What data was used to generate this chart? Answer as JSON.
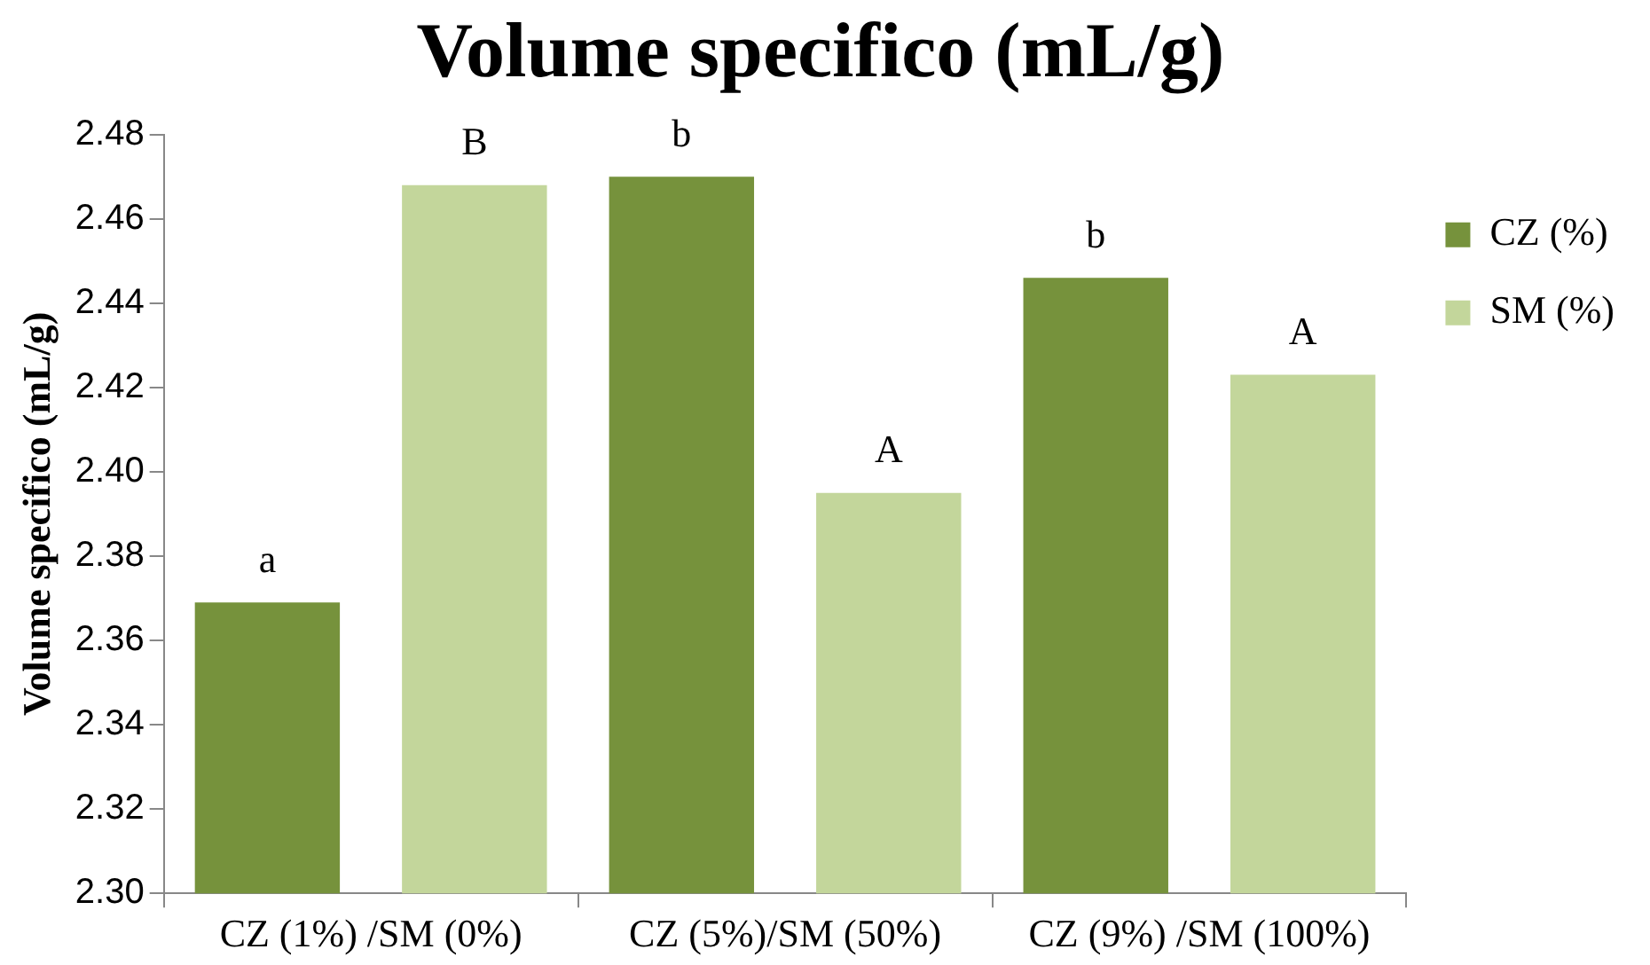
{
  "chart_data": {
    "type": "bar",
    "title": "Volume specifico (mL/g)",
    "ylabel": "Volume specifico (mL/g)",
    "categories": [
      "CZ (1%) /SM (0%)",
      "CZ (5%)/SM (50%)",
      "CZ (9%) /SM (100%)"
    ],
    "series": [
      {
        "name": "CZ (%)",
        "color": "#76923c",
        "values": [
          2.369,
          2.47,
          2.446
        ],
        "value_labels": [
          "a",
          "b",
          "b"
        ]
      },
      {
        "name": "SM (%)",
        "color": "#c3d69b",
        "values": [
          2.468,
          2.395,
          2.423
        ],
        "value_labels": [
          "B",
          "A",
          "A"
        ]
      }
    ],
    "ylim": [
      2.3,
      2.48
    ],
    "yticks": [
      {
        "value": 2.3,
        "label": "2.30"
      },
      {
        "value": 2.32,
        "label": "2.32"
      },
      {
        "value": 2.34,
        "label": "2.34"
      },
      {
        "value": 2.36,
        "label": "2.36"
      },
      {
        "value": 2.38,
        "label": "2.38"
      },
      {
        "value": 2.4,
        "label": "2.40"
      },
      {
        "value": 2.42,
        "label": "2.42"
      },
      {
        "value": 2.44,
        "label": "2.44"
      },
      {
        "value": 2.46,
        "label": "2.46"
      },
      {
        "value": 2.48,
        "label": "2.48"
      }
    ],
    "grid": false,
    "legend": "right"
  }
}
